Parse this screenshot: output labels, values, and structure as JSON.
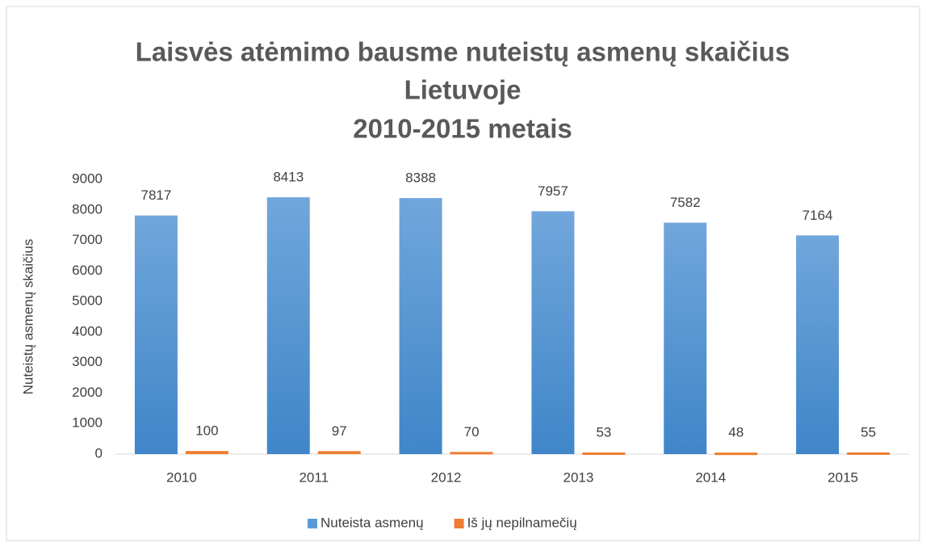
{
  "chart_data": {
    "type": "bar",
    "title": [
      "Laisvės atėmimo bausme nuteistų asmenų skaičius",
      "Lietuvoje",
      "2010-2015 metais"
    ],
    "ylabel": "Nuteistų asmenų skaičius",
    "categories": [
      "2010",
      "2011",
      "2012",
      "2013",
      "2014",
      "2015"
    ],
    "series": [
      {
        "name": "Nuteista asmenų",
        "color": "#5b9bd5",
        "values": [
          7817,
          8413,
          8388,
          7957,
          7582,
          7164
        ]
      },
      {
        "name": "Iš jų nepilnamečių",
        "color": "#ed7d31",
        "values": [
          100,
          97,
          70,
          53,
          48,
          55
        ]
      }
    ],
    "ylim": [
      0,
      9000
    ],
    "yticks": [
      0,
      1000,
      2000,
      3000,
      4000,
      5000,
      6000,
      7000,
      8000,
      9000
    ],
    "grid": false,
    "legend": "bottom"
  }
}
